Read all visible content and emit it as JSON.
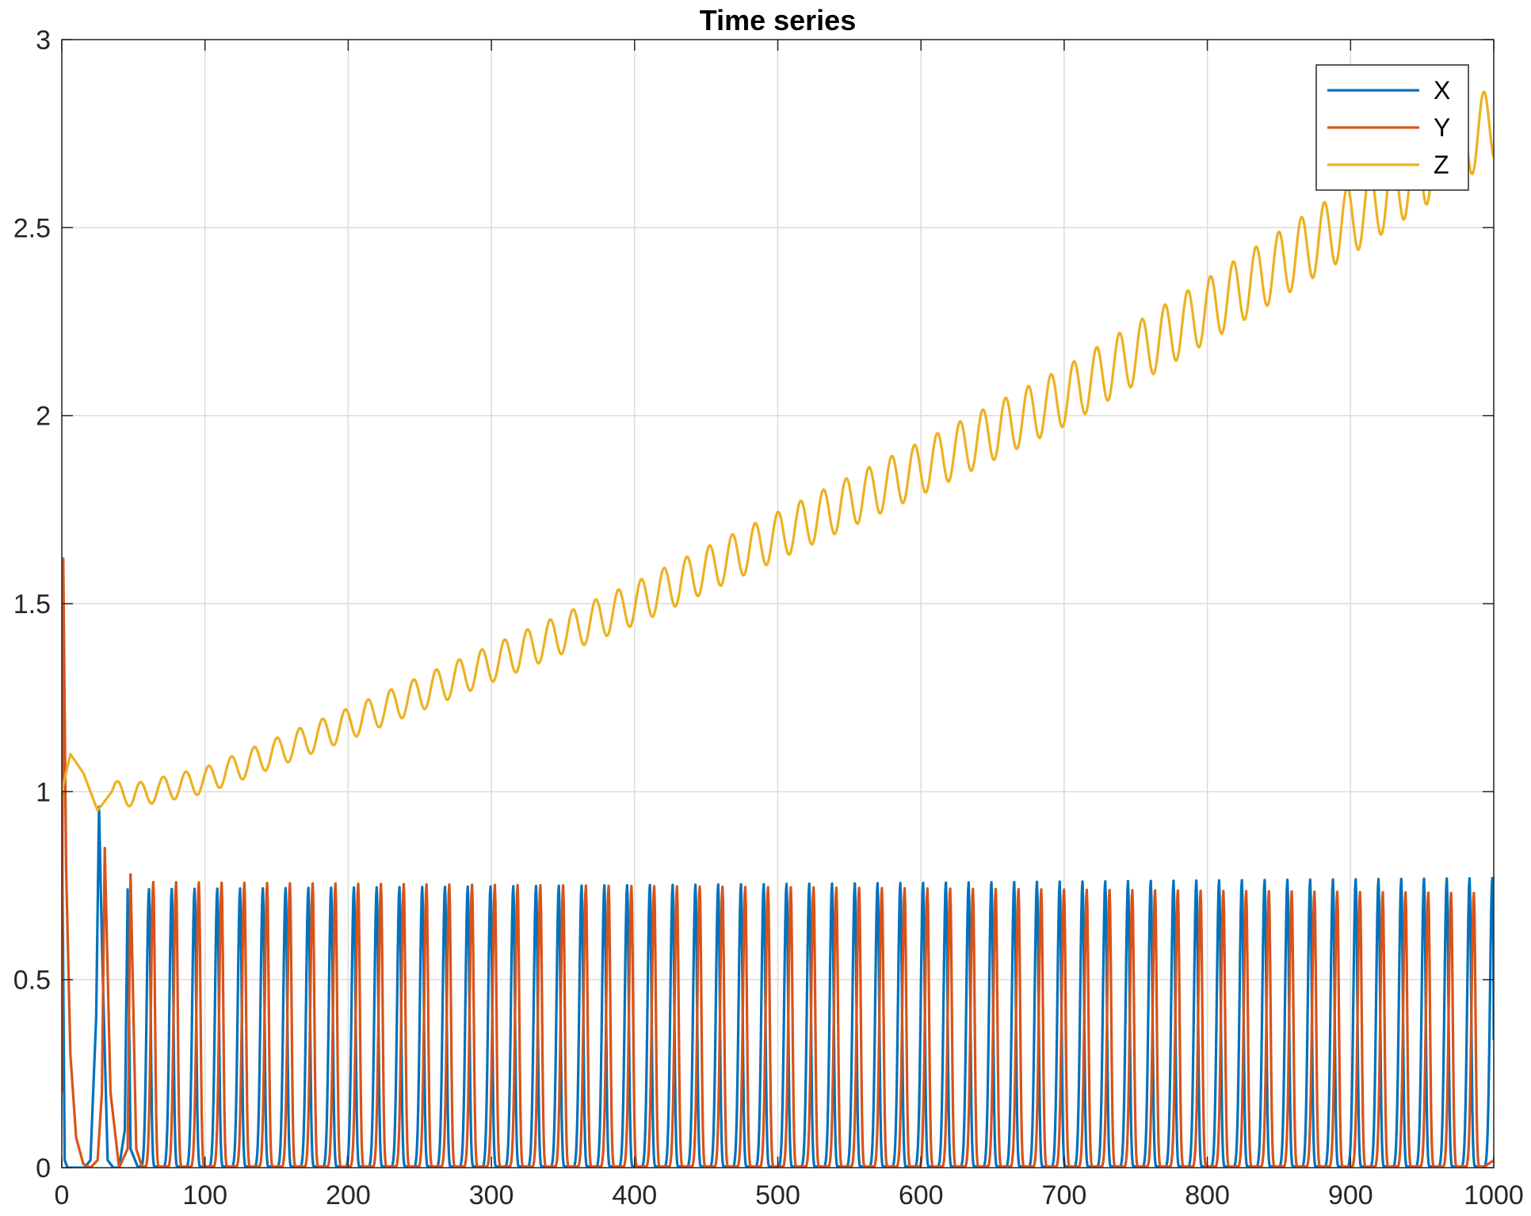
{
  "chart_data": {
    "type": "line",
    "title": "Time series",
    "xlabel": "",
    "ylabel": "",
    "xlim": [
      0,
      1000
    ],
    "ylim": [
      0,
      3
    ],
    "xticks": [
      "0",
      "100",
      "200",
      "300",
      "400",
      "500",
      "600",
      "700",
      "800",
      "900",
      "1000"
    ],
    "yticks": [
      "0",
      "0.5",
      "1",
      "1.5",
      "2",
      "2.5",
      "3"
    ],
    "grid": true,
    "legend_position": "top-right",
    "series": [
      {
        "name": "X",
        "color": "#0072BD",
        "description": "periodic spikes from ~0 to ~0.70-0.77, period ~16",
        "x": [
          0,
          2,
          4,
          8,
          12,
          16,
          20,
          24,
          26,
          28,
          32,
          36,
          40,
          44,
          46,
          48,
          1000
        ],
        "y": [
          0.98,
          0.02,
          0.0,
          0.0,
          0.0,
          0.0,
          0.02,
          0.4,
          0.96,
          0.6,
          0.02,
          0.0,
          0.0,
          0.1,
          0.74,
          0.05,
          0.34
        ],
        "first_peak_t": 45,
        "period": 15.9,
        "peak_start": 0.74,
        "peak_end": 0.77
      },
      {
        "name": "Y",
        "color": "#D95319",
        "description": "initial spike 1.62 then periodic spikes ~0.75, offset from X",
        "x": [
          0,
          1,
          3,
          6,
          10,
          15,
          20,
          25,
          28,
          30,
          34,
          40,
          46,
          48,
          52,
          1000
        ],
        "y": [
          0.2,
          1.62,
          0.8,
          0.3,
          0.08,
          0.01,
          0.0,
          0.02,
          0.2,
          0.85,
          0.2,
          0.0,
          0.05,
          0.78,
          0.05,
          0.02
        ],
        "first_peak_t": 48,
        "period": 15.9,
        "peak_start": 0.76,
        "peak_end": 0.73
      },
      {
        "name": "Z",
        "color": "#EDB120",
        "description": "oscillating increasing trend from ~1.0 to ~2.8",
        "x": [
          0,
          6,
          15,
          25,
          35,
          50,
          100,
          200,
          300,
          400,
          500,
          600,
          700,
          800,
          900,
          1000
        ],
        "y": [
          1.0,
          1.1,
          1.05,
          0.95,
          1.0,
          0.99,
          1.03,
          1.18,
          1.34,
          1.5,
          1.68,
          1.86,
          2.05,
          2.28,
          2.52,
          2.78
        ],
        "oscillation_amplitude_start": 0.03,
        "oscillation_amplitude_end": 0.1
      }
    ]
  }
}
